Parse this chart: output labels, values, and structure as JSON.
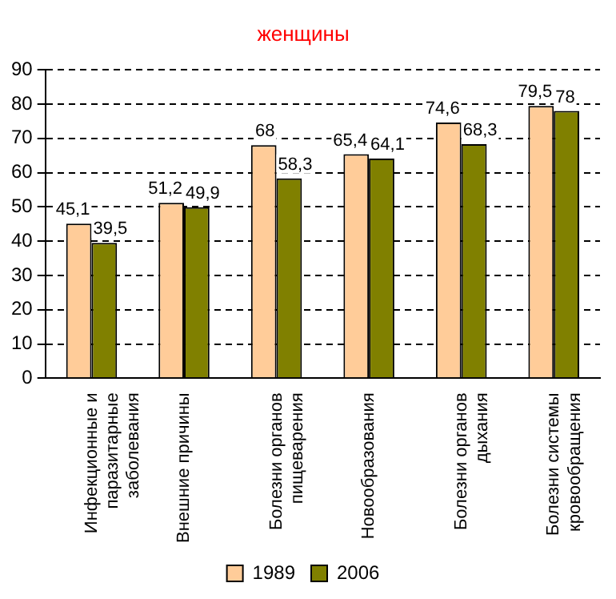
{
  "chart_data": {
    "type": "bar",
    "title": "женщины",
    "categories": [
      "Инфекционные и\nпаразитарные\nзаболевания",
      "Внешние причины",
      "Болезни органов\nпищеварения",
      "Новообразования",
      "Болезни органов\nдыхания",
      "Болезни системы\nкровообращения"
    ],
    "series": [
      {
        "name": "1989",
        "color": "#ffcc99",
        "values": [
          45.1,
          51.2,
          68,
          65.4,
          74.6,
          79.5
        ],
        "value_labels": [
          "45,1",
          "51,2",
          "68",
          "65,4",
          "74,6",
          "79,5"
        ]
      },
      {
        "name": "2006",
        "color": "#808000",
        "values": [
          39.5,
          49.9,
          58.3,
          64.1,
          68.3,
          78
        ],
        "value_labels": [
          "39,5",
          "49,9",
          "58,3",
          "64,1",
          "68,3",
          "78"
        ]
      }
    ],
    "ylim": [
      0,
      90
    ],
    "yticks": [
      0,
      10,
      20,
      30,
      40,
      50,
      60,
      70,
      80,
      90
    ],
    "grid": "y",
    "legend": "bottom"
  }
}
